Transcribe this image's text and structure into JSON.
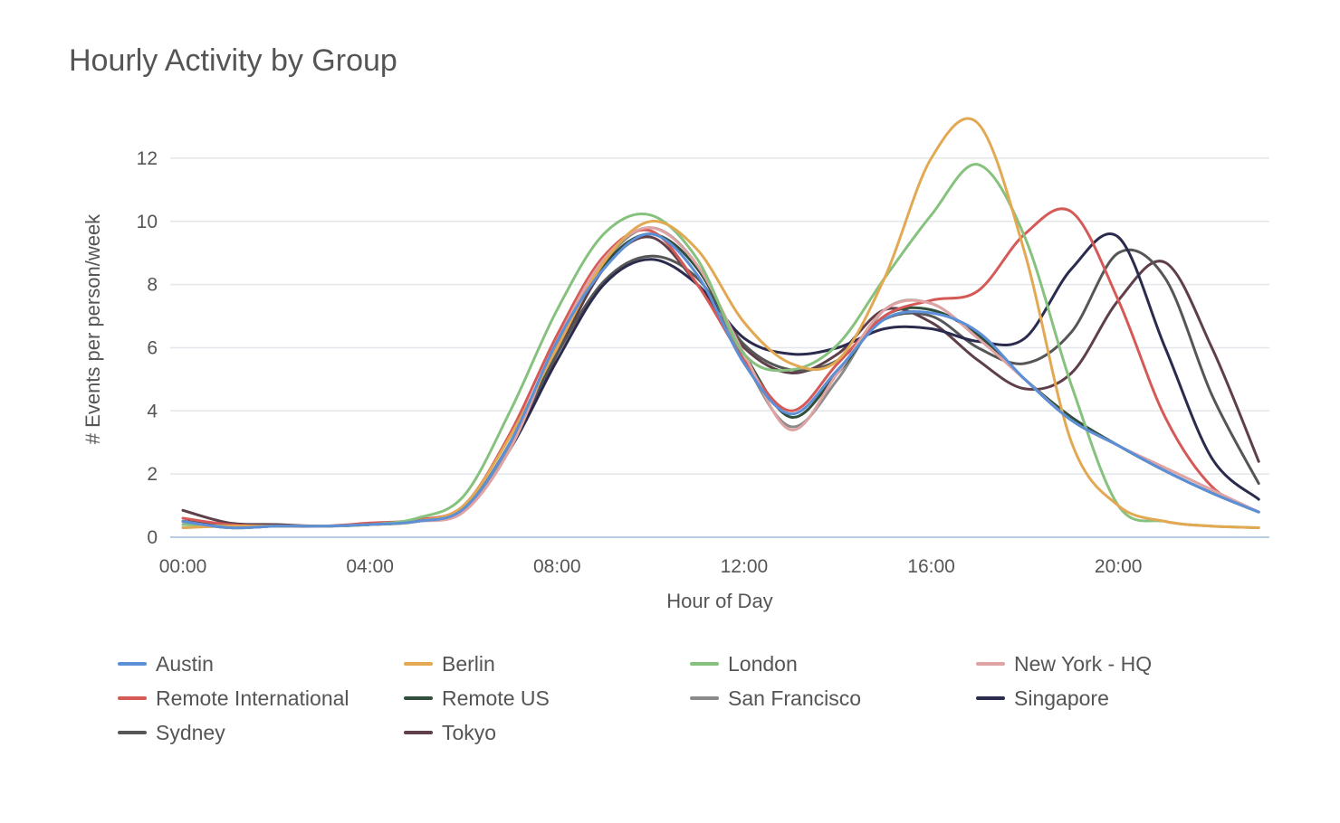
{
  "chart_data": {
    "type": "line",
    "title": "Hourly Activity by Group",
    "xlabel": "Hour of Day",
    "ylabel": "# Events per person/week",
    "ylim": [
      0,
      13
    ],
    "yticks": [
      "0",
      "2",
      "4",
      "6",
      "8",
      "10",
      "12"
    ],
    "categories": [
      "00:00",
      "01:00",
      "02:00",
      "03:00",
      "04:00",
      "05:00",
      "06:00",
      "07:00",
      "08:00",
      "09:00",
      "10:00",
      "11:00",
      "12:00",
      "13:00",
      "14:00",
      "15:00",
      "16:00",
      "17:00",
      "18:00",
      "19:00",
      "20:00",
      "21:00",
      "22:00",
      "23:00"
    ],
    "xticks": [
      "00:00",
      "04:00",
      "08:00",
      "12:00",
      "16:00",
      "20:00"
    ],
    "legend_position": "bottom",
    "grid": true,
    "series": [
      {
        "name": "Austin",
        "color": "#5b8fd8",
        "values": [
          0.5,
          0.3,
          0.35,
          0.35,
          0.4,
          0.5,
          0.9,
          3.0,
          6.2,
          8.5,
          9.6,
          8.3,
          5.5,
          3.9,
          5.3,
          6.9,
          7.1,
          6.5,
          5.0,
          3.7,
          2.9,
          2.1,
          1.4,
          0.8
        ]
      },
      {
        "name": "Berlin",
        "color": "#e2a852",
        "values": [
          0.3,
          0.35,
          0.35,
          0.35,
          0.4,
          0.5,
          1.0,
          3.2,
          6.0,
          8.7,
          10.0,
          9.1,
          6.8,
          5.5,
          5.6,
          8.2,
          12.0,
          13.1,
          9.0,
          3.0,
          1.0,
          0.5,
          0.35,
          0.3
        ]
      },
      {
        "name": "London",
        "color": "#86c27e",
        "values": [
          0.4,
          0.35,
          0.35,
          0.35,
          0.4,
          0.6,
          1.3,
          4.0,
          7.2,
          9.6,
          10.2,
          8.8,
          5.8,
          5.3,
          6.1,
          8.2,
          10.2,
          11.8,
          9.5,
          4.8,
          1.0,
          0.5,
          0.35,
          0.3
        ]
      },
      {
        "name": "New York - HQ",
        "color": "#e0a3a3",
        "values": [
          0.5,
          0.3,
          0.35,
          0.35,
          0.4,
          0.5,
          0.8,
          2.8,
          6.2,
          8.8,
          9.8,
          8.6,
          5.8,
          3.4,
          5.2,
          7.2,
          7.4,
          6.3,
          5.0,
          3.7,
          2.9,
          2.2,
          1.5,
          0.8
        ]
      },
      {
        "name": "Remote International",
        "color": "#d55a57",
        "values": [
          0.6,
          0.4,
          0.35,
          0.35,
          0.45,
          0.55,
          1.0,
          3.3,
          6.4,
          8.9,
          9.7,
          8.0,
          5.6,
          4.0,
          5.5,
          7.0,
          7.5,
          7.8,
          9.6,
          10.3,
          7.5,
          3.8,
          1.6,
          0.8
        ]
      },
      {
        "name": "Remote US",
        "color": "#2f4f3c",
        "values": [
          0.5,
          0.3,
          0.35,
          0.35,
          0.4,
          0.5,
          0.9,
          3.0,
          6.0,
          8.6,
          9.6,
          8.5,
          5.8,
          3.8,
          5.2,
          7.0,
          7.2,
          6.4,
          5.0,
          3.8,
          2.9,
          2.1,
          1.4,
          0.8
        ]
      },
      {
        "name": "San Francisco",
        "color": "#8a8a8a",
        "values": [
          0.5,
          0.3,
          0.35,
          0.35,
          0.4,
          0.5,
          0.9,
          2.9,
          6.1,
          8.7,
          9.8,
          8.6,
          5.6,
          3.5,
          5.0,
          7.2,
          7.4,
          6.3,
          5.0,
          3.7,
          2.9,
          2.1,
          1.4,
          0.8
        ]
      },
      {
        "name": "Singapore",
        "color": "#2b2b4d",
        "values": [
          0.5,
          0.4,
          0.35,
          0.35,
          0.4,
          0.5,
          0.9,
          2.8,
          5.6,
          8.0,
          8.8,
          8.0,
          6.3,
          5.8,
          6.0,
          6.6,
          6.6,
          6.2,
          6.3,
          8.5,
          9.5,
          6.0,
          2.5,
          1.2
        ]
      },
      {
        "name": "Sydney",
        "color": "#565656",
        "values": [
          0.5,
          0.4,
          0.35,
          0.35,
          0.4,
          0.5,
          0.9,
          2.9,
          5.8,
          8.1,
          8.9,
          8.2,
          6.1,
          5.3,
          5.6,
          6.9,
          7.0,
          6.0,
          5.5,
          6.5,
          9.0,
          8.2,
          4.5,
          1.7
        ]
      },
      {
        "name": "Tokyo",
        "color": "#5e3f4a",
        "values": [
          0.85,
          0.45,
          0.4,
          0.35,
          0.4,
          0.5,
          0.9,
          2.8,
          5.8,
          8.5,
          9.5,
          8.0,
          6.0,
          5.2,
          5.8,
          7.2,
          6.8,
          5.6,
          4.7,
          5.2,
          7.5,
          8.7,
          6.0,
          2.4
        ]
      }
    ]
  }
}
